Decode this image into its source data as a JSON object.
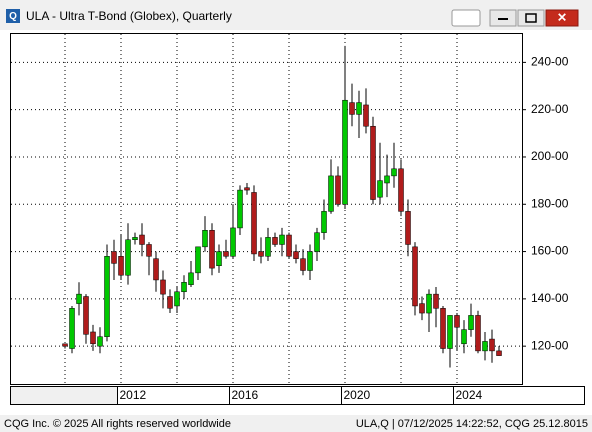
{
  "window_title": "ULA - Ultra T-Bond (Globex), Quarterly",
  "footer": {
    "left": "CQG Inc. © 2025 All rights reserved worldwide",
    "right": "ULA,Q | 07/12/2025 14:22:52, CQG 25.12.8015"
  },
  "chart_data": {
    "type": "candlestick",
    "categories": [
      null,
      null,
      null,
      null,
      null,
      null,
      null,
      null,
      "2012",
      null,
      null,
      null,
      null,
      null,
      null,
      null,
      null,
      null,
      null,
      null,
      null,
      null,
      null,
      null,
      "2016",
      null,
      null,
      null,
      null,
      null,
      null,
      null,
      null,
      null,
      null,
      null,
      null,
      null,
      null,
      null,
      "2020",
      null,
      null,
      null,
      null,
      null,
      null,
      null,
      null,
      null,
      null,
      null,
      null,
      null,
      null,
      null,
      "2024",
      null,
      null,
      null,
      null,
      null,
      null
    ],
    "open": [
      121,
      119,
      138,
      141,
      126,
      120,
      124,
      160,
      158,
      150,
      165,
      167,
      163,
      157,
      148,
      141,
      137,
      143,
      146,
      151,
      162,
      169,
      154,
      160,
      158,
      170,
      187,
      185,
      160,
      158,
      166,
      163,
      167,
      160,
      157,
      152,
      160,
      168,
      177,
      192,
      180,
      223,
      218,
      222,
      213,
      183,
      189,
      192,
      195,
      177,
      162,
      138,
      134,
      142,
      136,
      119,
      133,
      121,
      127,
      133,
      118,
      123,
      118
    ],
    "high": [
      121,
      137,
      147,
      142,
      129,
      128,
      163,
      165,
      167,
      172,
      168,
      172,
      164,
      160,
      152,
      144,
      145,
      150,
      156,
      162,
      175,
      172,
      163,
      165,
      180,
      188,
      189,
      188,
      166,
      170,
      168,
      170,
      168,
      163,
      161,
      163,
      170,
      182,
      199,
      196,
      247,
      231,
      228,
      229,
      217,
      206,
      201,
      206,
      199,
      182,
      164,
      141,
      144,
      145,
      137,
      133,
      134,
      131,
      138,
      135,
      126,
      127,
      120
    ],
    "low": [
      119,
      117,
      133,
      121,
      118,
      117,
      122,
      148,
      148,
      146,
      163,
      158,
      150,
      143,
      136,
      134,
      134,
      140,
      145,
      148,
      160,
      150,
      151,
      157,
      157,
      167,
      184,
      156,
      155,
      156,
      162,
      158,
      157,
      155,
      150,
      148,
      156,
      165,
      176,
      179,
      178,
      213,
      208,
      210,
      180,
      180,
      183,
      187,
      175,
      158,
      133,
      131,
      126,
      128,
      117,
      111,
      118,
      117,
      124,
      117,
      114,
      113,
      116
    ],
    "close": [
      120,
      136,
      142,
      125,
      121,
      124,
      158,
      155,
      150,
      165,
      166,
      163,
      158,
      148,
      142,
      136,
      143,
      147,
      151,
      162,
      169,
      153,
      160,
      158,
      170,
      186,
      186,
      159,
      158,
      166,
      163,
      167,
      158,
      157,
      152,
      160,
      168,
      177,
      192,
      180,
      224,
      218,
      223,
      213,
      182,
      190,
      192,
      195,
      177,
      163,
      137,
      134,
      142,
      136,
      119,
      133,
      128,
      127,
      133,
      118,
      122,
      118,
      116
    ],
    "up_color": "#00c800",
    "down_color": "#b01c1c",
    "ylim": [
      104,
      252
    ],
    "yticks": [
      {
        "value": 120,
        "label": "120-00"
      },
      {
        "value": 140,
        "label": "140-00"
      },
      {
        "value": 160,
        "label": "160-00"
      },
      {
        "value": 180,
        "label": "180-00"
      },
      {
        "value": 200,
        "label": "200-00"
      },
      {
        "value": 220,
        "label": "220-00"
      },
      {
        "value": 240,
        "label": "240-00"
      }
    ],
    "grid": true
  }
}
